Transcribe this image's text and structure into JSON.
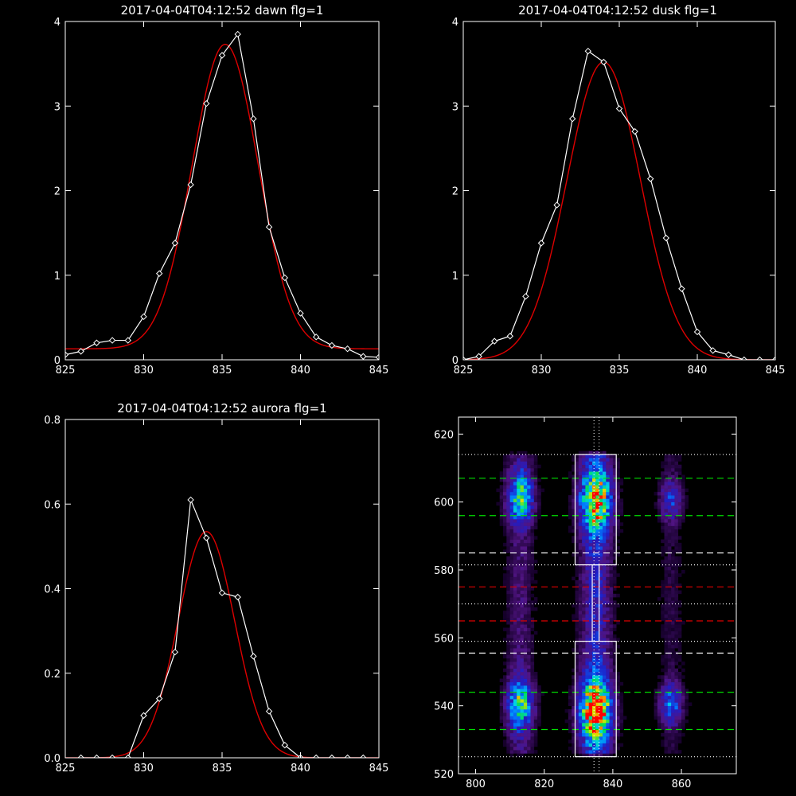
{
  "chart_data": [
    {
      "type": "line",
      "title": "2017-04-04T04:12:52 dawn flg=1",
      "xlim": [
        825,
        845
      ],
      "ylim": [
        0,
        4
      ],
      "xticks": [
        825,
        830,
        835,
        840,
        845
      ],
      "yticks": [
        0,
        1,
        2,
        3,
        4
      ],
      "colors": {
        "data": "#ffffff",
        "fit": "#dd0000"
      },
      "series": [
        {
          "kind": "data",
          "x": [
            825,
            826,
            827,
            828,
            829,
            830,
            831,
            832,
            833,
            834,
            835,
            836,
            837,
            838,
            839,
            840,
            841,
            842,
            843,
            844,
            845
          ],
          "y": [
            0.06,
            0.1,
            0.2,
            0.23,
            0.23,
            0.51,
            1.02,
            1.38,
            2.07,
            3.03,
            3.6,
            3.85,
            2.85,
            1.57,
            0.97,
            0.55,
            0.27,
            0.17,
            0.13,
            0.04,
            0.03
          ]
        },
        {
          "kind": "fit",
          "model": "gaussian",
          "center": 835.2,
          "sigma": 2.1,
          "amplitude": 3.6,
          "baseline": 0.13
        }
      ]
    },
    {
      "type": "line",
      "title": "2017-04-04T04:12:52 dusk flg=1",
      "xlim": [
        825,
        845
      ],
      "ylim": [
        0,
        4
      ],
      "xticks": [
        825,
        830,
        835,
        840,
        845
      ],
      "yticks": [
        0,
        1,
        2,
        3,
        4
      ],
      "colors": {
        "data": "#ffffff",
        "fit": "#dd0000"
      },
      "series": [
        {
          "kind": "data",
          "x": [
            825,
            826,
            827,
            828,
            829,
            830,
            831,
            832,
            833,
            834,
            835,
            836,
            837,
            838,
            839,
            840,
            841,
            842,
            843,
            844,
            845
          ],
          "y": [
            0.0,
            0.04,
            0.22,
            0.28,
            0.75,
            1.38,
            1.83,
            2.85,
            3.65,
            3.52,
            2.97,
            2.7,
            2.14,
            1.44,
            0.84,
            0.33,
            0.11,
            0.06,
            0.0,
            0.0,
            0.0
          ]
        },
        {
          "kind": "fit",
          "model": "gaussian",
          "center": 834.0,
          "sigma": 2.35,
          "amplitude": 3.52,
          "baseline": 0.0
        }
      ]
    },
    {
      "type": "line",
      "title": "2017-04-04T04:12:52 aurora flg=1",
      "xlim": [
        825,
        845
      ],
      "ylim": [
        0,
        0.8
      ],
      "xticks": [
        825,
        830,
        835,
        840,
        845
      ],
      "yticks": [
        0.0,
        0.2,
        0.4,
        0.6,
        0.8
      ],
      "colors": {
        "data": "#ffffff",
        "fit": "#dd0000"
      },
      "series": [
        {
          "kind": "data",
          "x": [
            826,
            827,
            828,
            829,
            830,
            831,
            832,
            833,
            834,
            835,
            836,
            837,
            838,
            839,
            840,
            841,
            842,
            843,
            844
          ],
          "y": [
            0.0,
            0.0,
            0.0,
            0.0,
            0.1,
            0.14,
            0.25,
            0.61,
            0.52,
            0.39,
            0.38,
            0.24,
            0.11,
            0.03,
            0.0,
            0.0,
            0.0,
            0.0,
            0.0
          ]
        },
        {
          "kind": "fit",
          "model": "gaussian",
          "center": 834.0,
          "sigma": 1.8,
          "amplitude": 0.535,
          "baseline": 0.0
        }
      ]
    },
    {
      "type": "heatmap",
      "xlim": [
        795,
        876
      ],
      "ylim": [
        520,
        625
      ],
      "xticks": [
        800,
        820,
        840,
        860
      ],
      "yticks": [
        520,
        540,
        560,
        580,
        600,
        620
      ],
      "emission_columns": [
        {
          "center": 813,
          "halfwidth": 2.5,
          "clumps": [
            {
              "y": 601,
              "spread": 5,
              "peak": 0.55
            },
            {
              "y": 540,
              "spread": 5,
              "peak": 0.55
            }
          ],
          "base": 0.12
        },
        {
          "center": 835,
          "halfwidth": 3,
          "clumps": [
            {
              "y": 600,
              "spread": 6,
              "peak": 0.72
            },
            {
              "y": 538,
              "spread": 6,
              "peak": 0.92
            }
          ],
          "base": 0.25
        },
        {
          "center": 857,
          "halfwidth": 2.2,
          "clumps": [
            {
              "y": 600,
              "spread": 4,
              "peak": 0.25
            },
            {
              "y": 540,
              "spread": 4,
              "peak": 0.35
            }
          ],
          "base": 0.06
        }
      ],
      "boxes": [
        {
          "x0": 829,
          "x1": 841,
          "y0": 581.5,
          "y1": 614
        },
        {
          "x0": 829,
          "x1": 841,
          "y0": 525,
          "y1": 559
        },
        {
          "x0": 834,
          "x1": 836,
          "y0": 559,
          "y1": 581.5
        }
      ],
      "hlines": [
        {
          "y": 614,
          "color": "#ffffff",
          "style": "dotted"
        },
        {
          "y": 607,
          "color": "#00dd00",
          "style": "dashed"
        },
        {
          "y": 596,
          "color": "#00dd00",
          "style": "dashed"
        },
        {
          "y": 585,
          "color": "#ffffff",
          "style": "dashed"
        },
        {
          "y": 581.5,
          "color": "#ffffff",
          "style": "dotted"
        },
        {
          "y": 575,
          "color": "#dd0000",
          "style": "dashed"
        },
        {
          "y": 570,
          "color": "#ffffff",
          "style": "dotted"
        },
        {
          "y": 565,
          "color": "#dd0000",
          "style": "dashed"
        },
        {
          "y": 559,
          "color": "#ffffff",
          "style": "dotted"
        },
        {
          "y": 555.5,
          "color": "#ffffff",
          "style": "dashed"
        },
        {
          "y": 544,
          "color": "#00dd00",
          "style": "dashed"
        },
        {
          "y": 533,
          "color": "#00dd00",
          "style": "dashed"
        },
        {
          "y": 525,
          "color": "#ffffff",
          "style": "dotted"
        }
      ],
      "vlines": [
        {
          "x": 834.5,
          "color": "#ffffff",
          "style": "dotted"
        },
        {
          "x": 836,
          "color": "#ffffff",
          "style": "dotted"
        }
      ]
    }
  ]
}
